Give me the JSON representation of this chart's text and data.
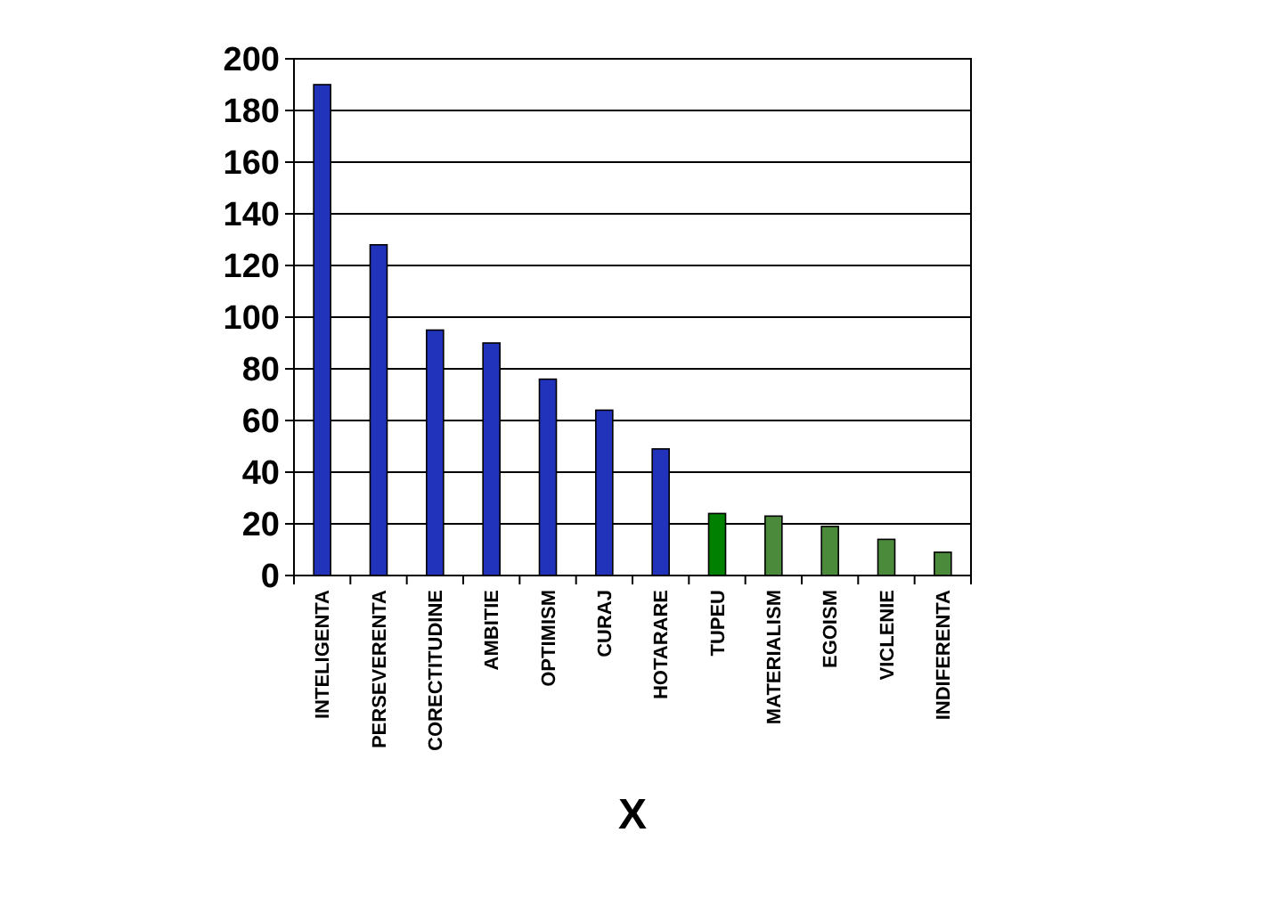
{
  "chart_data": {
    "type": "bar",
    "xlabel": "X",
    "categories": [
      "INTELIGENTA",
      "PERSEVERENTA",
      "CORECTITUDINE",
      "AMBITIE",
      "OPTIMISM",
      "CURAJ",
      "HOTARARE",
      "TUPEU",
      "MATERIALISM",
      "EGOISM",
      "VICLENIE",
      "INDIFERENTA"
    ],
    "values": [
      190,
      128,
      95,
      90,
      76,
      64,
      49,
      24,
      23,
      19,
      14,
      9
    ],
    "colors": [
      "#2233bb",
      "#2233bb",
      "#2233bb",
      "#2233bb",
      "#2233bb",
      "#2233bb",
      "#2233bb",
      "#008000",
      "#4a8a3a",
      "#4a8a3a",
      "#4a8a3a",
      "#4a8a3a"
    ],
    "ylim": [
      0,
      200
    ],
    "yticks": [
      0,
      20,
      40,
      60,
      80,
      100,
      120,
      140,
      160,
      180,
      200
    ],
    "grid": "y"
  }
}
